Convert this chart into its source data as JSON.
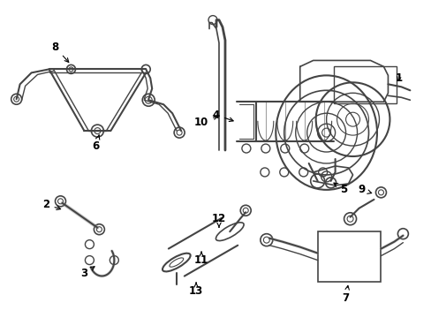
{
  "bg_color": "#ffffff",
  "line_color": "#444444",
  "label_color": "#000000",
  "label_fontsize": 8.5,
  "fig_width": 4.89,
  "fig_height": 3.6,
  "dpi": 100,
  "xlim": [
    0,
    489
  ],
  "ylim": [
    0,
    360
  ]
}
